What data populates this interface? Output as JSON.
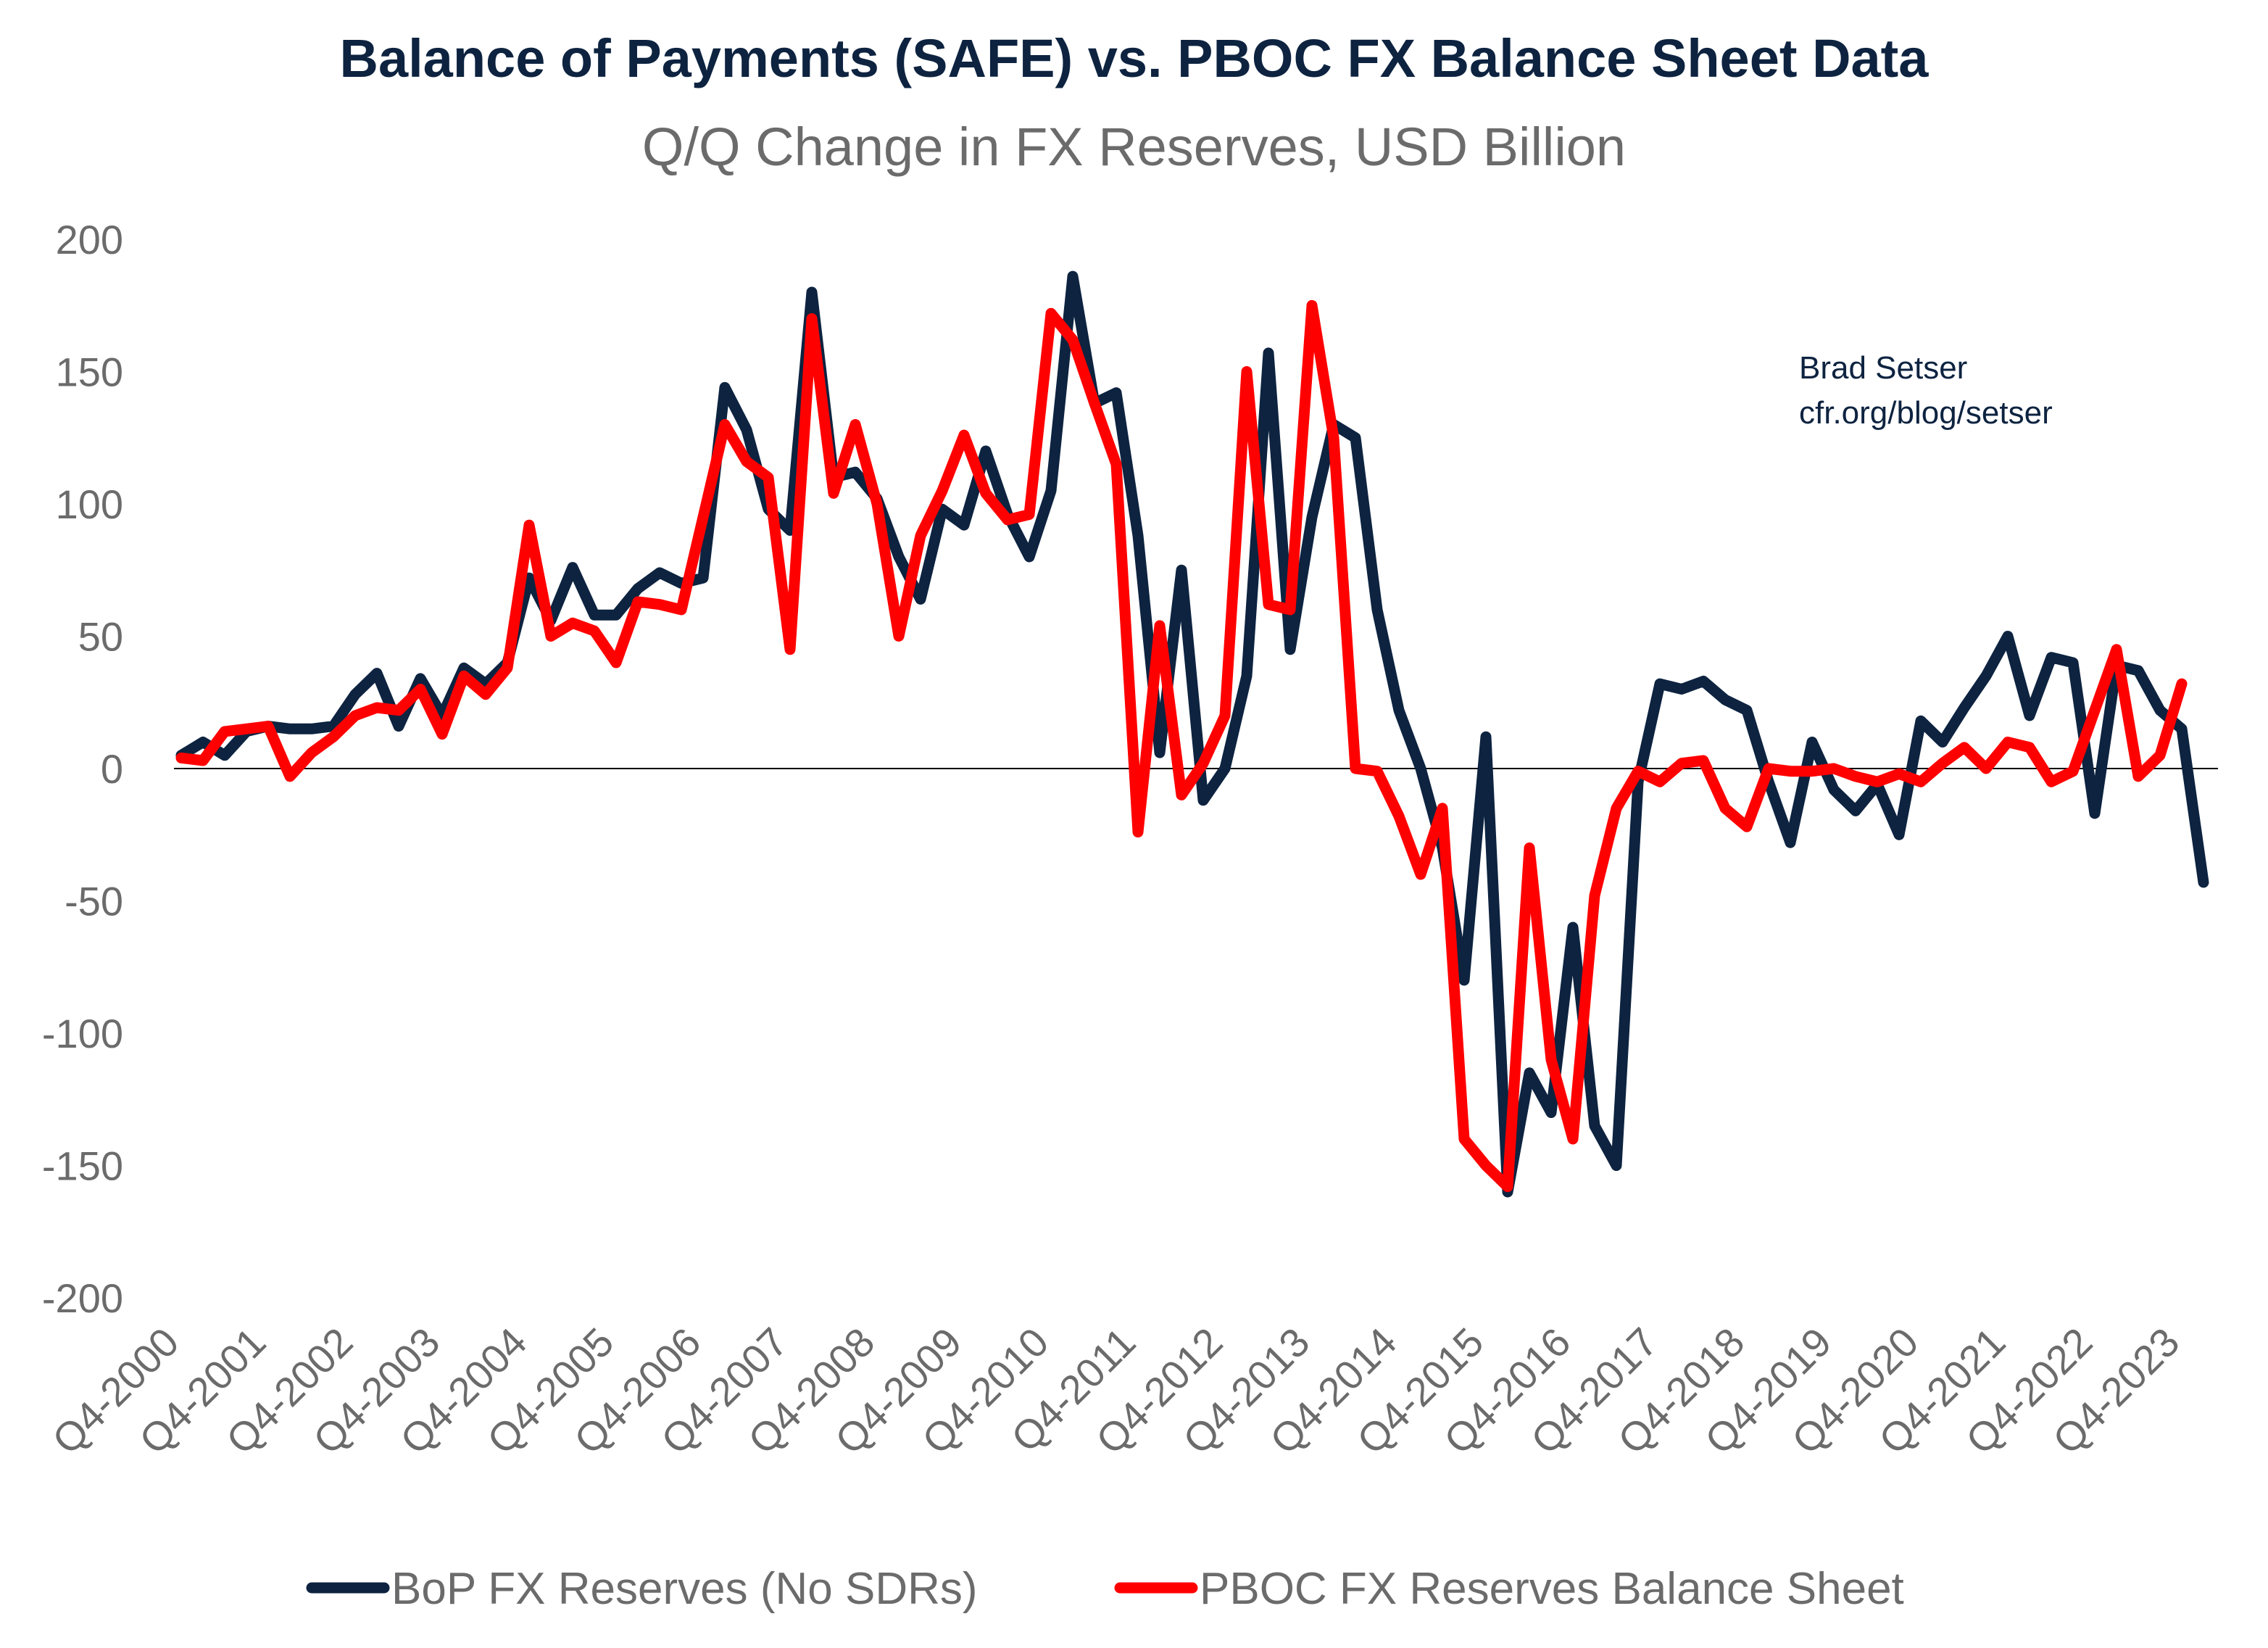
{
  "chart_data": {
    "type": "line",
    "title": "Balance of Payments (SAFE) vs. PBOC FX Balance Sheet Data",
    "subtitle": "Q/Q Change in FX Reserves, USD Billion",
    "xlabel": "",
    "ylabel": "",
    "ylim": [
      -200,
      200
    ],
    "yticks": [
      "200",
      "150",
      "100",
      "50",
      "0",
      "-50",
      "-100",
      "-150",
      "-200"
    ],
    "grid": false,
    "legend_position": "bottom",
    "x_tick_labels": [
      "Q4-2000",
      "Q4-2001",
      "Q4-2002",
      "Q4-2003",
      "Q4-2004",
      "Q4-2005",
      "Q4-2006",
      "Q4-2007",
      "Q4-2008",
      "Q4-2009",
      "Q4-2010",
      "Q4-2011",
      "Q4-2012",
      "Q4-2013",
      "Q4-2014",
      "Q4-2015",
      "Q4-2016",
      "Q4-2017",
      "Q4-2018",
      "Q4-2019",
      "Q4-2020",
      "Q4-2021",
      "Q4-2022",
      "Q4-2023"
    ],
    "annotation": [
      "Brad Setser",
      "cfr.org/blog/setser"
    ],
    "series": [
      {
        "name": "BoP FX Reserves (No SDRs)",
        "color": "#0d2340",
        "x_start": "Q4-2000",
        "values": [
          5,
          10,
          5,
          14,
          16,
          15,
          15,
          16,
          28,
          36,
          16,
          34,
          20,
          38,
          32,
          40,
          72,
          56,
          76,
          58,
          58,
          68,
          74,
          70,
          72,
          144,
          128,
          98,
          90,
          180,
          110,
          112,
          102,
          80,
          64,
          98,
          92,
          120,
          96,
          80,
          105,
          186,
          138,
          142,
          88,
          6,
          75,
          -12,
          0,
          35,
          157,
          45,
          95,
          130,
          125,
          60,
          22,
          0,
          -30,
          -80,
          12,
          -160,
          -115,
          -130,
          -60,
          -135,
          -150,
          -5,
          32,
          30,
          33,
          26,
          22,
          -5,
          -28,
          10,
          -8,
          -16,
          -6,
          -25,
          18,
          10,
          23,
          35,
          50,
          20,
          42,
          40,
          -17,
          39,
          37,
          22,
          15,
          -43
        ],
        "values_note": ""
      },
      {
        "name": "PBOC FX Reserves Balance Sheet",
        "color": "#ff0000",
        "x_start": "Q4-2000",
        "values": [
          4,
          3,
          14,
          15,
          16,
          -3,
          6,
          12,
          20,
          23,
          22,
          30,
          13,
          35,
          28,
          38,
          92,
          50,
          55,
          52,
          40,
          63,
          62,
          60,
          95,
          130,
          116,
          110,
          45,
          170,
          104,
          130,
          100,
          50,
          88,
          105,
          126,
          104,
          94,
          96,
          172,
          162,
          138,
          115,
          -24,
          54,
          -10,
          2,
          20,
          150,
          62,
          60,
          175,
          125,
          0,
          -1,
          -18,
          -40,
          -15,
          -140,
          -150,
          -158,
          -30,
          -110,
          -140,
          -48,
          -15,
          -1,
          -5,
          2,
          3,
          -15,
          -22,
          0,
          -1,
          -1,
          0,
          -3,
          -5,
          -2,
          -5,
          2,
          8,
          0,
          10,
          8,
          -5,
          -1,
          22,
          45,
          -3,
          5,
          32
        ],
        "values_note": ""
      }
    ]
  }
}
